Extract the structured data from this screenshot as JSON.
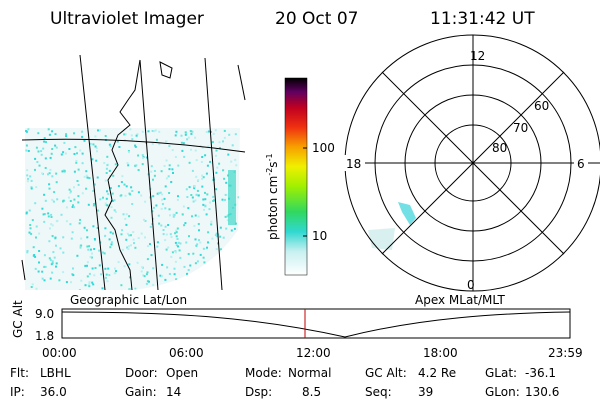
{
  "header": {
    "title": "Ultraviolet Imager",
    "date": "20 Oct 07",
    "time": "11:31:42 UT"
  },
  "colorbar": {
    "unit": "photon cm",
    "exp1": "-2",
    "unit2": "s",
    "exp2": "-1",
    "ticks": [
      "100",
      "10"
    ]
  },
  "polar": {
    "lat_labels": [
      "60",
      "70",
      "80"
    ],
    "mlt_labels": {
      "top": "12",
      "bottom": "0",
      "left": "18",
      "right": "6"
    }
  },
  "map_label": "Geographic Lat/Lon",
  "polar_label": "Apex MLat/MLT",
  "altitude_plot": {
    "ylabel": "GC Alt",
    "yticks": [
      "9.0",
      "1.8"
    ],
    "xticks": [
      "00:00",
      "06:00",
      "12:00",
      "18:00",
      "23:59"
    ]
  },
  "status": [
    [
      [
        "Flt:",
        "LBHL"
      ],
      [
        "Door:",
        "Open"
      ],
      [
        "Mode:",
        "Normal"
      ],
      [
        "GC Alt:",
        "4.2 Re"
      ],
      [
        "GLat:",
        "-36.1"
      ]
    ],
    [
      [
        "IP:",
        "36.0"
      ],
      [
        "Gain:",
        "14"
      ],
      [
        "Dsp:",
        "8.5"
      ],
      [
        "Seq:",
        "39"
      ],
      [
        "GLon:",
        "130.6"
      ]
    ]
  ]
}
